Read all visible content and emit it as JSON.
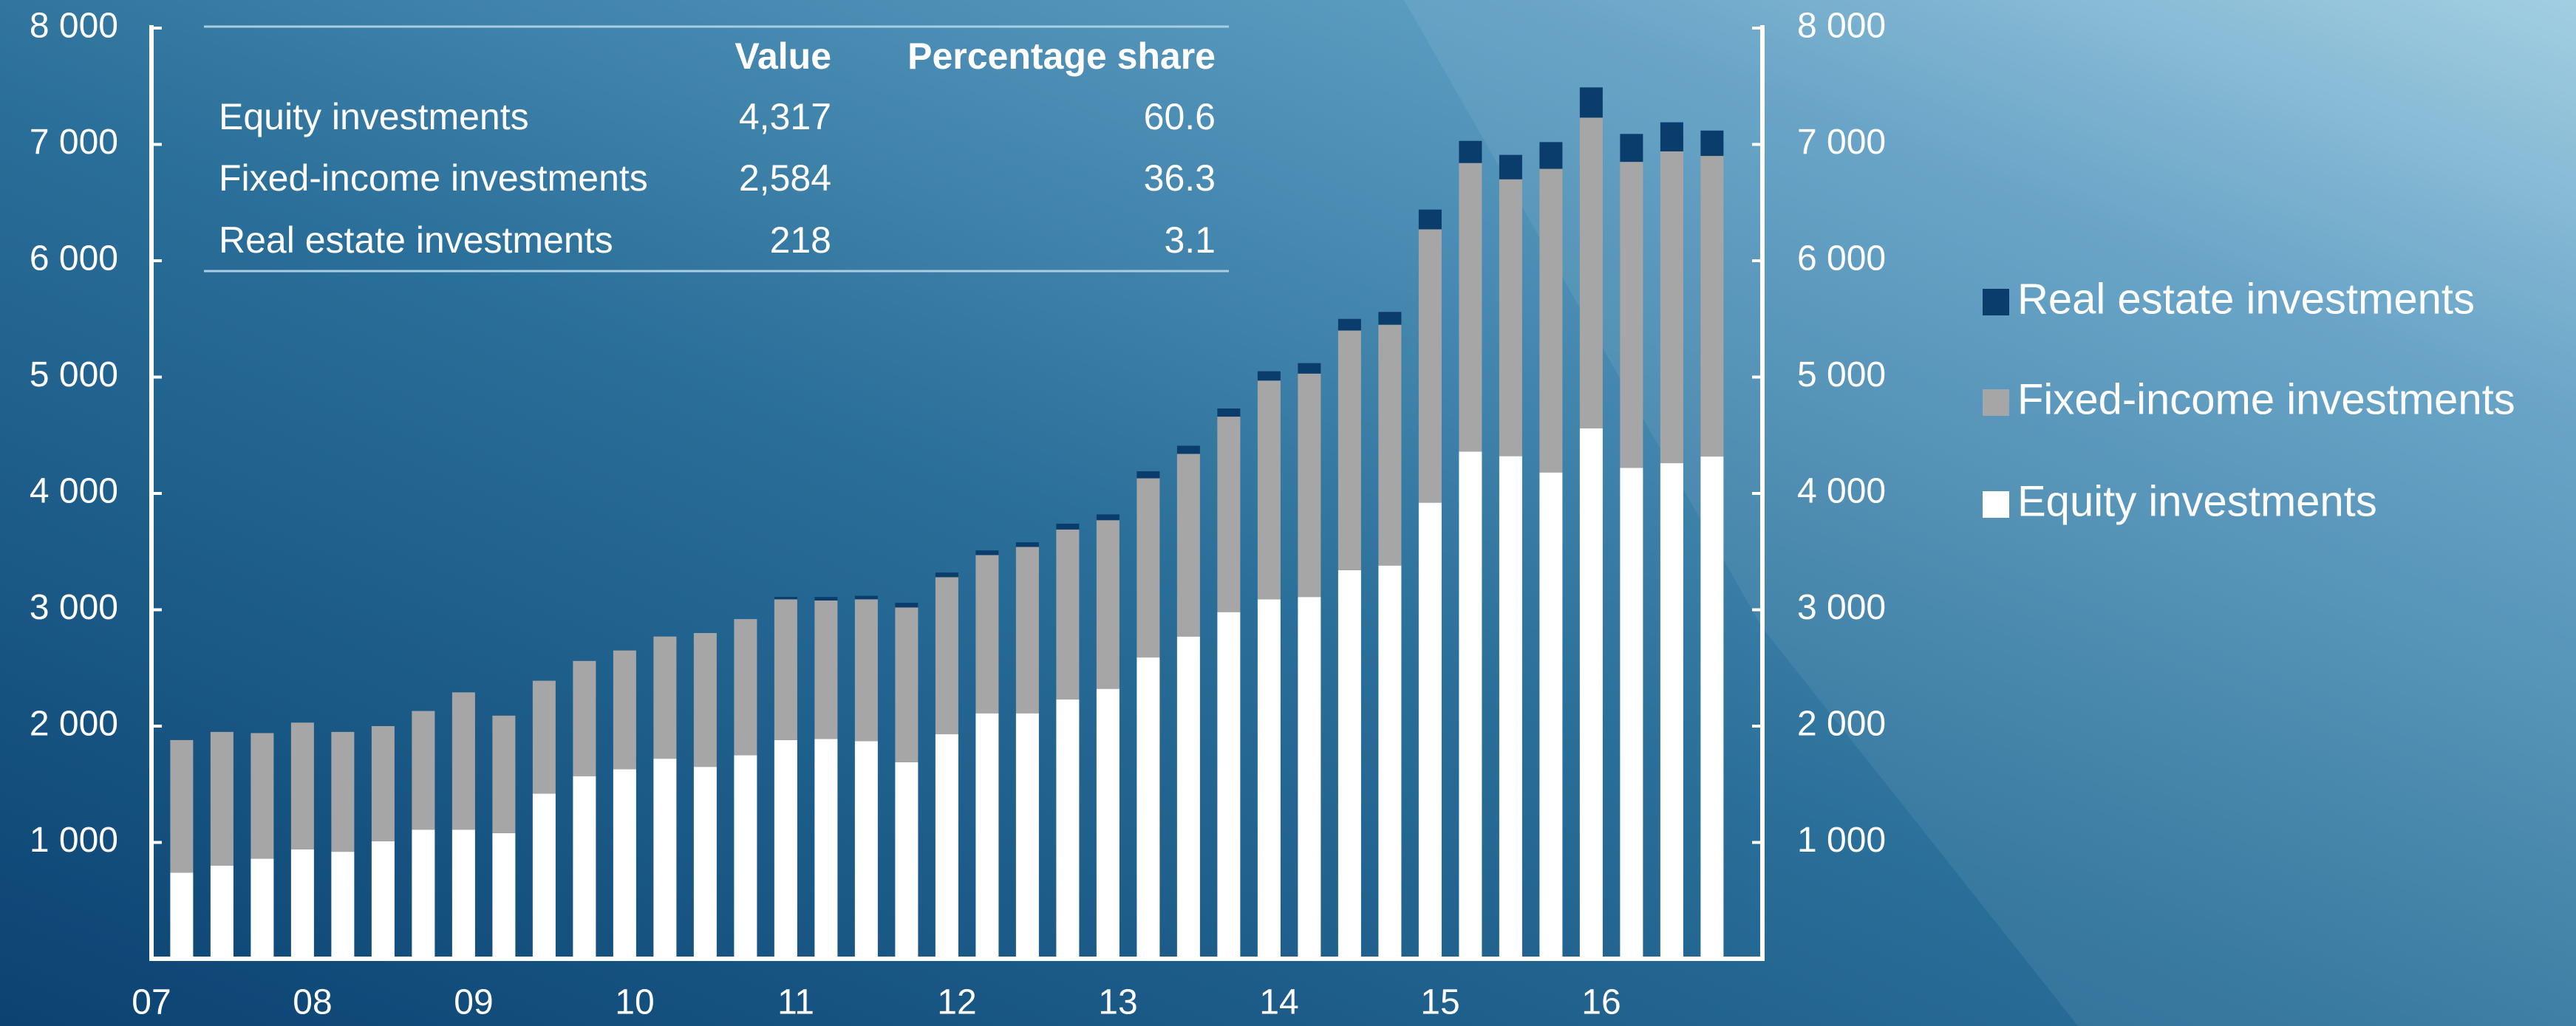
{
  "chart_data": {
    "type": "stacked_bar",
    "categories": [
      "07",
      null,
      null,
      null,
      "08",
      null,
      null,
      null,
      "09",
      null,
      null,
      null,
      "10",
      null,
      null,
      null,
      "11",
      null,
      null,
      null,
      "12",
      null,
      null,
      null,
      "13",
      null,
      null,
      null,
      "14",
      null,
      null,
      null,
      "15",
      null,
      null,
      null,
      "16",
      null,
      null
    ],
    "series": [
      {
        "name": "Equity investments",
        "color": "#ffffff",
        "values": [
          740,
          800,
          860,
          940,
          920,
          1010,
          1110,
          1110,
          1080,
          1420,
          1570,
          1630,
          1720,
          1650,
          1750,
          1880,
          1890,
          1870,
          1690,
          1930,
          2110,
          2110,
          2230,
          2320,
          2590,
          2770,
          2980,
          3090,
          3110,
          3340,
          3380,
          3920,
          4360,
          4320,
          4180,
          4560,
          4220,
          4260,
          4317
        ]
      },
      {
        "name": "Fixed-income investments",
        "color": "#a6a6a6",
        "values": [
          1140,
          1150,
          1080,
          1090,
          1030,
          990,
          1020,
          1180,
          1010,
          970,
          990,
          1020,
          1050,
          1150,
          1170,
          1210,
          1190,
          1220,
          1330,
          1350,
          1360,
          1430,
          1460,
          1450,
          1540,
          1570,
          1680,
          1880,
          1920,
          2060,
          2070,
          2350,
          2480,
          2380,
          2610,
          2670,
          2630,
          2680,
          2584
        ]
      },
      {
        "name": "Real estate investments",
        "color": "#0a3d6b",
        "values": [
          0,
          0,
          0,
          0,
          0,
          0,
          0,
          0,
          0,
          0,
          0,
          0,
          0,
          0,
          0,
          20,
          30,
          30,
          40,
          40,
          40,
          40,
          50,
          50,
          60,
          70,
          70,
          80,
          90,
          100,
          110,
          170,
          190,
          210,
          230,
          260,
          240,
          250,
          218
        ]
      }
    ],
    "ylim": [
      0,
      8000
    ],
    "yticks": [
      {
        "value": 1000,
        "label": "1 000"
      },
      {
        "value": 2000,
        "label": "2 000"
      },
      {
        "value": 3000,
        "label": "3 000"
      },
      {
        "value": 4000,
        "label": "4 000"
      },
      {
        "value": 5000,
        "label": "5 000"
      },
      {
        "value": 6000,
        "label": "6 000"
      },
      {
        "value": 7000,
        "label": "7 000"
      },
      {
        "value": 8000,
        "label": "8 000"
      }
    ],
    "y2lim": [
      0,
      8000
    ],
    "y2ticks": [
      {
        "value": 1000,
        "label": "1 000"
      },
      {
        "value": 2000,
        "label": "2 000"
      },
      {
        "value": 3000,
        "label": "3 000"
      },
      {
        "value": 4000,
        "label": "4 000"
      },
      {
        "value": 5000,
        "label": "5 000"
      },
      {
        "value": 6000,
        "label": "6 000"
      },
      {
        "value": 7000,
        "label": "7 000"
      },
      {
        "value": 8000,
        "label": "8 000"
      }
    ],
    "grid": false,
    "legend": "right",
    "table": {
      "columns": [
        "Value",
        "Percentage share"
      ],
      "rows": [
        [
          "Equity investments",
          "4,317",
          "60.6"
        ],
        [
          "Fixed-income investments",
          "2,584",
          "36.3"
        ],
        [
          "Real estate investments",
          "218",
          "3.1"
        ]
      ]
    }
  }
}
